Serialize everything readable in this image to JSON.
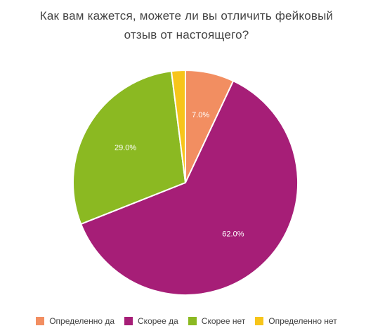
{
  "chart_data": {
    "type": "pie",
    "title_lines": [
      "Как вам кажется, можете ли вы отличить фейковый",
      "отзыв от настоящего?"
    ],
    "slices": [
      {
        "label": "Определенно да",
        "value": 7.0,
        "value_label": "7.0%",
        "color": "#F28E61"
      },
      {
        "label": "Скорее да",
        "value": 62.0,
        "value_label": "62.0%",
        "color": "#A61E77"
      },
      {
        "label": "Скорее нет",
        "value": 29.0,
        "value_label": "29.0%",
        "color": "#8BB922"
      },
      {
        "label": "Определенно нет",
        "value": 2.0,
        "value_label": "",
        "color": "#F7C51A"
      }
    ],
    "legend_position": "bottom"
  }
}
